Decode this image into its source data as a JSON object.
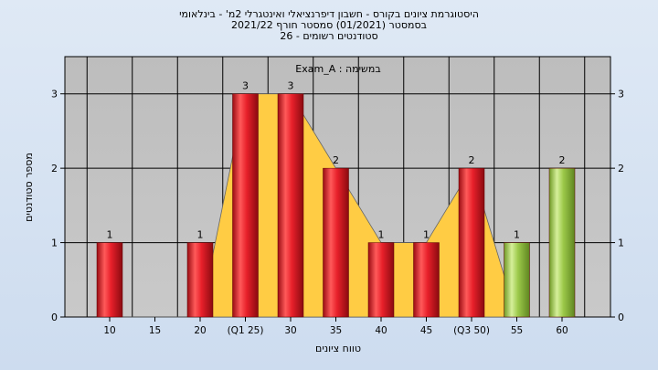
{
  "title_lines": [
    "היסטוגרמת ציונים בקורס - חשבון דיפרנציאלי ואינטגרלי 2מ' - בינלאומי",
    "בסמסטר  (01/2021)  סמסטר חורף 2021/22",
    "סטודנטים רשומים - 26"
  ],
  "colors": {
    "plot_bg": "#c0c0c0",
    "bar_red": "#e8202a",
    "bar_green": "#9cc94a",
    "area_yellow": "#ffcc44",
    "grid": "#000000"
  },
  "chart_data": {
    "type": "bar",
    "legend_text": "Exam_A : במשימה",
    "xlabel": "טווח ציונים",
    "ylabel": "מספר סטודנטים",
    "ylim": [
      0,
      3.5
    ],
    "yticks": [
      0,
      1,
      2,
      3
    ],
    "grid": true,
    "categories": [
      "10",
      "15",
      "20",
      "(Q1 25)",
      "30",
      "35",
      "40",
      "45",
      "(Q3 50)",
      "55",
      "60"
    ],
    "values": [
      1,
      0,
      1,
      3,
      3,
      2,
      1,
      1,
      2,
      1,
      2
    ],
    "bar_colors": [
      "red",
      "none",
      "red",
      "red",
      "red",
      "red",
      "red",
      "red",
      "red",
      "green",
      "green"
    ],
    "data_labels": [
      "1",
      "",
      "1",
      "3",
      "3",
      "2",
      "1",
      "1",
      "2",
      "1",
      "2"
    ],
    "area_series": {
      "values": [
        0,
        0,
        0,
        3,
        3,
        2,
        1,
        1,
        2,
        0,
        0
      ]
    }
  }
}
